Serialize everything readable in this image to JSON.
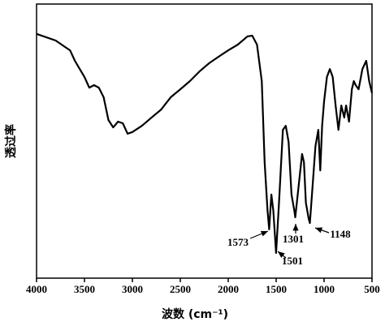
{
  "chart_data": {
    "type": "line",
    "xlabel": "波数 (cm⁻¹)",
    "ylabel": "透过率",
    "xlim": [
      4000,
      500
    ],
    "ylim": [
      0,
      100
    ],
    "xticks": [
      4000,
      3500,
      3000,
      2500,
      2000,
      1500,
      1000,
      500
    ],
    "annotations": [
      "1573",
      "1501",
      "1301",
      "1148"
    ],
    "series": [
      {
        "color": "#000000",
        "x": [
          4000,
          3800,
          3700,
          3650,
          3600,
          3500,
          3450,
          3400,
          3350,
          3300,
          3250,
          3200,
          3150,
          3100,
          3050,
          3000,
          2900,
          2800,
          2700,
          2600,
          2500,
          2400,
          2300,
          2200,
          2100,
          2000,
          1900,
          1800,
          1750,
          1700,
          1650,
          1620,
          1590,
          1573,
          1550,
          1530,
          1501,
          1470,
          1430,
          1400,
          1370,
          1340,
          1310,
          1301,
          1270,
          1230,
          1210,
          1190,
          1160,
          1148,
          1120,
          1090,
          1060,
          1040,
          1020,
          1000,
          970,
          940,
          910,
          880,
          850,
          820,
          790,
          770,
          740,
          710,
          690,
          670,
          640,
          600,
          560,
          530,
          500
        ],
        "values": [
          89.1,
          86.7,
          84.3,
          83.1,
          79.3,
          73.4,
          69.5,
          70.4,
          69.5,
          66.0,
          57.7,
          55.0,
          57.1,
          56.5,
          52.7,
          53.3,
          55.6,
          58.6,
          61.5,
          66.0,
          68.9,
          71.9,
          75.4,
          78.4,
          80.8,
          83.1,
          85.2,
          88.2,
          88.5,
          85.2,
          71.9,
          42.3,
          24.6,
          17.8,
          30.5,
          24.6,
          9.2,
          27.5,
          54.1,
          55.6,
          49.7,
          30.5,
          24.6,
          22.2,
          32.0,
          45.3,
          42.3,
          27.5,
          21.6,
          20.1,
          33.4,
          48.2,
          54.1,
          39.3,
          55.6,
          64.5,
          73.4,
          76.3,
          73.4,
          63.0,
          54.1,
          63.0,
          58.6,
          63.0,
          57.1,
          68.9,
          71.9,
          70.4,
          68.9,
          76.3,
          79.3,
          71.9,
          67.5
        ]
      }
    ]
  }
}
